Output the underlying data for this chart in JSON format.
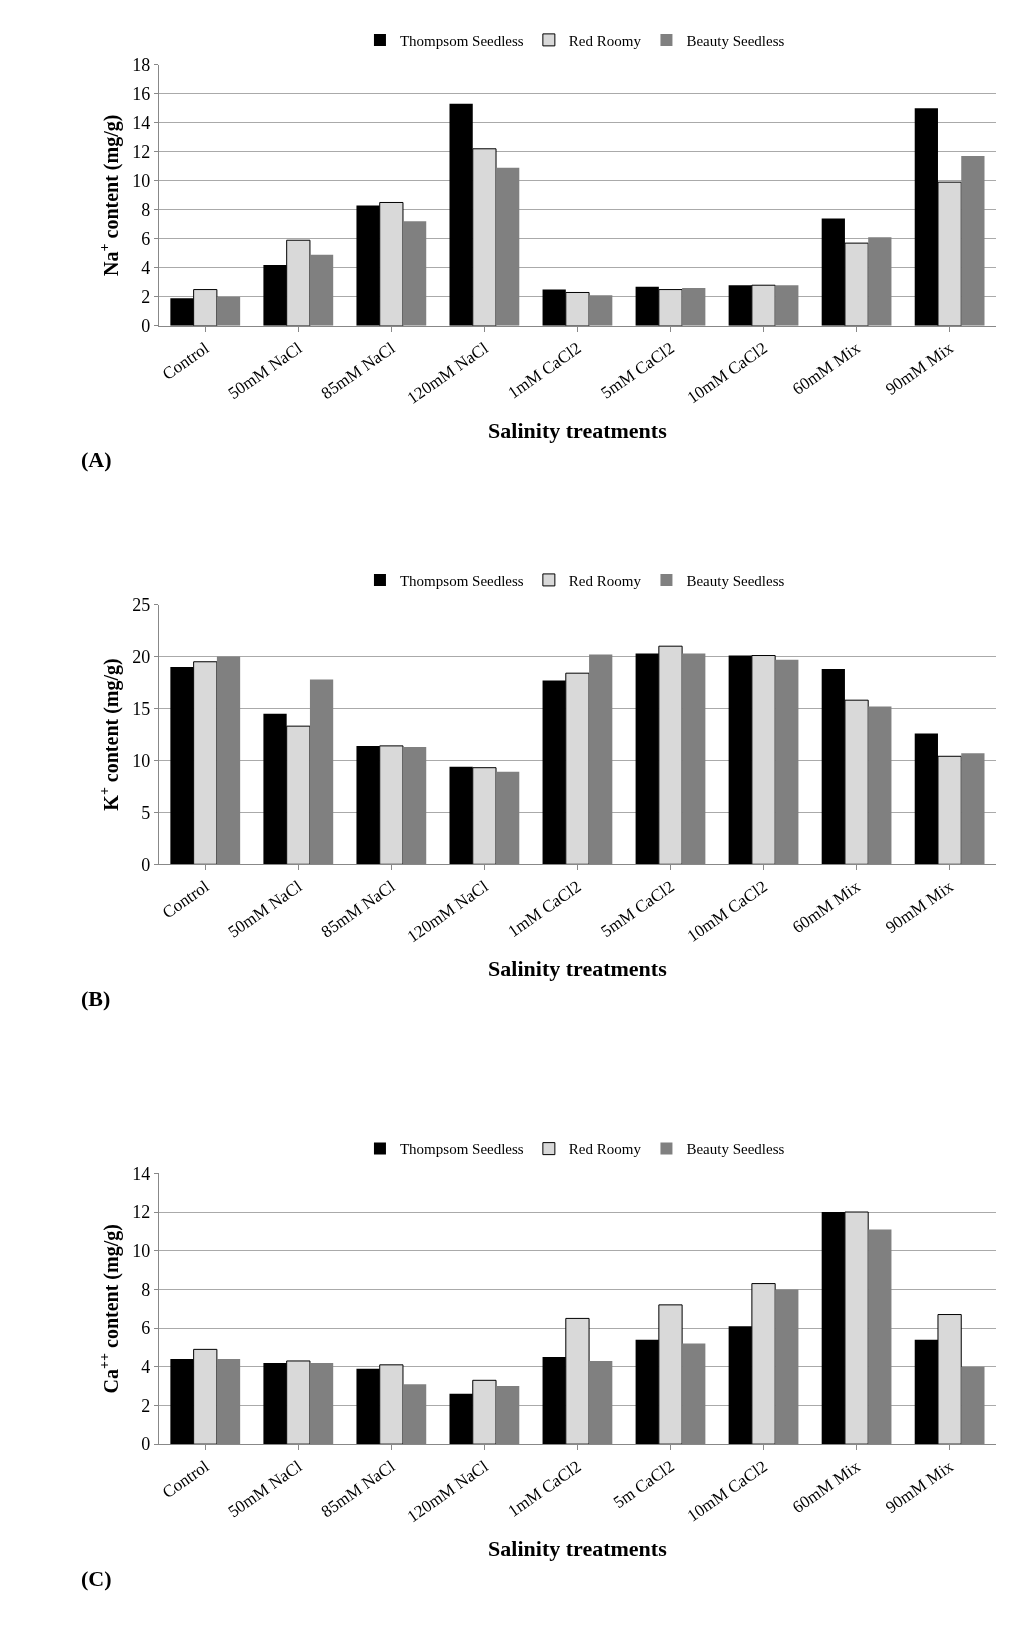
{
  "chart_data": [
    {
      "type": "bar",
      "categories": [
        "Control",
        "50mM NaCl",
        "85mM NaCl",
        "120mM NaCl",
        "1mM CaCl2",
        "5mM CaCl2",
        "10mM CaCl2",
        "60mM Mix",
        "90mM Mix"
      ],
      "xlabel": "Salinity treatments",
      "ylabel": "Na$^{+}$ content (mg/g)",
      "annotations": [
        "(A)"
      ],
      "ylim": [
        0,
        18
      ],
      "yticks": [
        0,
        2,
        4,
        6,
        8,
        10,
        12,
        14,
        16,
        18
      ],
      "grid": "y",
      "legend": "top",
      "series": [
        {
          "name": "Thompsom Seedless",
          "color": "#000000",
          "values": [
            1.9,
            4.2,
            8.3,
            15.3,
            2.5,
            2.7,
            2.8,
            7.4,
            15.0
          ]
        },
        {
          "name": "Red Roomy",
          "color": "#d9d9d9",
          "values": [
            2.5,
            5.9,
            8.5,
            12.2,
            2.3,
            2.5,
            2.8,
            5.7,
            9.9
          ]
        },
        {
          "name": "Beauty Seedless",
          "color": "#808080",
          "values": [
            2.0,
            4.9,
            7.2,
            10.9,
            2.1,
            2.6,
            2.8,
            6.1,
            11.7
          ]
        }
      ]
    },
    {
      "type": "bar",
      "categories": [
        "Control",
        "50mM NaCl",
        "85mM NaCl",
        "120mM NaCl",
        "1mM CaCl2",
        "5mM CaCl2",
        "10mM CaCl2",
        "60mM Mix",
        "90mM Mix"
      ],
      "xlabel": "Salinity treatments",
      "ylabel": "K$^{+}$ content (mg/g)",
      "annotations": [
        "(B)"
      ],
      "ylim": [
        0,
        25
      ],
      "yticks": [
        0,
        5,
        10,
        15,
        20,
        25
      ],
      "grid": "y",
      "legend": "top",
      "series": [
        {
          "name": "Thompsom Seedless",
          "color": "#000000",
          "values": [
            19.0,
            14.5,
            11.4,
            9.4,
            17.7,
            20.3,
            20.1,
            18.8,
            12.6
          ]
        },
        {
          "name": "Red Roomy",
          "color": "#d9d9d9",
          "values": [
            19.5,
            13.3,
            11.4,
            9.3,
            18.4,
            21.0,
            20.1,
            15.8,
            10.4
          ]
        },
        {
          "name": "Beauty Seedless",
          "color": "#808080",
          "values": [
            20.0,
            17.8,
            11.3,
            8.9,
            20.2,
            20.3,
            19.7,
            15.2,
            10.7
          ]
        }
      ]
    },
    {
      "type": "bar",
      "categories": [
        "Control",
        "50mM NaCl",
        "85mM NaCl",
        "120mM NaCl",
        "1mM CaCl2",
        "5m CaCl2",
        "10mM CaCl2",
        "60mM Mix",
        "90mM Mix"
      ],
      "xlabel": "Salinity treatments",
      "ylabel": "Ca$^{++}$ content (mg/g)",
      "annotations": [
        "(C)"
      ],
      "ylim": [
        0,
        14
      ],
      "yticks": [
        0,
        2,
        4,
        6,
        8,
        10,
        12,
        14
      ],
      "grid": "y",
      "legend": "top",
      "series": [
        {
          "name": "Thompsom Seedless",
          "color": "#000000",
          "values": [
            4.4,
            4.2,
            3.9,
            2.6,
            4.5,
            5.4,
            6.1,
            12.0,
            5.4
          ]
        },
        {
          "name": "Red Roomy",
          "color": "#d9d9d9",
          "values": [
            4.9,
            4.3,
            4.1,
            3.3,
            6.5,
            7.2,
            8.3,
            12.0,
            6.7
          ]
        },
        {
          "name": "Beauty Seedless",
          "color": "#808080",
          "values": [
            4.4,
            4.2,
            3.1,
            3.0,
            4.3,
            5.2,
            8.0,
            11.1,
            4.0
          ]
        }
      ]
    }
  ]
}
